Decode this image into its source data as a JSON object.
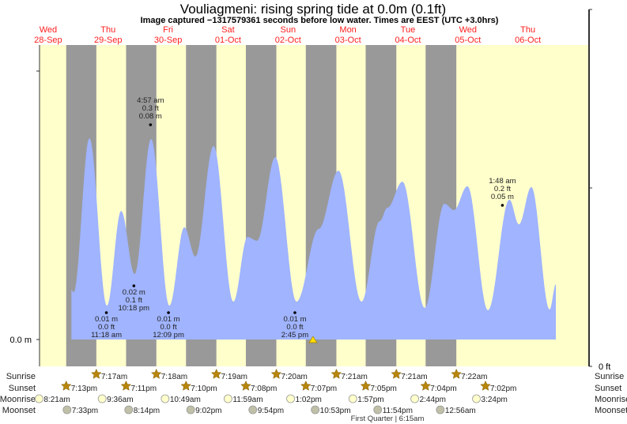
{
  "chart_data": {
    "type": "area",
    "title": "Vouliagmeni: rising  spring tide at 0.0m (0.1ft)",
    "subtitle": "Image captured −1317579361 seconds before low water. Times are EEST (UTC +3.0hrs)",
    "days": [
      {
        "name": "Wed",
        "date": "28-Sep"
      },
      {
        "name": "Thu",
        "date": "29-Sep"
      },
      {
        "name": "Fri",
        "date": "30-Sep"
      },
      {
        "name": "Sat",
        "date": "01-Oct"
      },
      {
        "name": "Sun",
        "date": "02-Oct"
      },
      {
        "name": "Mon",
        "date": "03-Oct"
      },
      {
        "name": "Tue",
        "date": "04-Oct"
      },
      {
        "name": "Wed",
        "date": "05-Oct"
      },
      {
        "name": "Thu",
        "date": "06-Oct"
      }
    ],
    "y_left_label": "0.0 m",
    "y_right_label": "0 ft",
    "x_unit": "hours from Wed 28-Sep 00:00",
    "tide_curve": {
      "hours": [
        21.3,
        22.2,
        28.5,
        35.5,
        41.2,
        46.6,
        53.2,
        60.5,
        66.5,
        70.9,
        78.2,
        86.1,
        91.8,
        95.6,
        102.9,
        111.4,
        120.3,
        128.2,
        137.4,
        144.7,
        147.8,
        153.8,
        162.7,
        170.6,
        174.4,
        179.8,
        188.0,
        196.6,
        200.4,
        205.4,
        212.7,
        215.2
      ],
      "height_m": [
        0.0185,
        0.0176,
        0.075,
        0.0126,
        0.0479,
        0.0244,
        0.0747,
        0.0126,
        0.0418,
        0.0309,
        0.0721,
        0.0141,
        0.0382,
        0.0368,
        0.0679,
        0.0141,
        0.0412,
        0.0629,
        0.0141,
        0.0441,
        0.0491,
        0.0588,
        0.0118,
        0.0506,
        0.0482,
        0.0571,
        0.0109,
        0.0521,
        0.0429,
        0.0568,
        0.0112,
        0.0206
      ]
    },
    "annotations": [
      {
        "hour": 52.95,
        "m": 0.08,
        "lines": [
          "4:57 am",
          "0.3 ft",
          "0.08 m"
        ],
        "pos": "above"
      },
      {
        "hour": 46.3,
        "m": 0.02,
        "lines": [
          "0.02 m",
          "0.1 ft",
          "10:18 pm"
        ],
        "pos": "below"
      },
      {
        "hour": 35.3,
        "m": 0.01,
        "lines": [
          "0.01 m",
          "0.0 ft",
          "11:18 am"
        ],
        "pos": "below"
      },
      {
        "hour": 60.15,
        "m": 0.01,
        "lines": [
          "0.01 m",
          "0.0 ft",
          "12:09 pm"
        ],
        "pos": "below"
      },
      {
        "hour": 110.75,
        "m": 0.01,
        "lines": [
          "0.01 m",
          "0.0 ft",
          "2:45 pm"
        ],
        "pos": "below"
      },
      {
        "hour": 193.8,
        "m": 0.05,
        "lines": [
          "1:48 am",
          "0.2 ft",
          "0.05 m"
        ],
        "pos": "above"
      }
    ],
    "nights": [
      [
        19.22,
        31.28
      ],
      [
        43.18,
        55.3
      ],
      [
        67.17,
        79.32
      ],
      [
        91.13,
        103.33
      ],
      [
        115.12,
        127.35
      ],
      [
        139.08,
        151.35
      ],
      [
        163.07,
        175.37
      ]
    ],
    "marker_hour": 118,
    "rows": {
      "sunrise": {
        "label": "Sunrise",
        "events": [
          {
            "hour": 31.28,
            "text": "7:17am"
          },
          {
            "hour": 55.3,
            "text": "7:18am"
          },
          {
            "hour": 79.32,
            "text": "7:19am"
          },
          {
            "hour": 103.33,
            "text": "7:20am"
          },
          {
            "hour": 127.35,
            "text": "7:21am"
          },
          {
            "hour": 151.35,
            "text": "7:21am"
          },
          {
            "hour": 175.37,
            "text": "7:22am"
          }
        ]
      },
      "sunset": {
        "label": "Sunset",
        "events": [
          {
            "hour": 19.22,
            "text": "7:13pm"
          },
          {
            "hour": 43.18,
            "text": "7:11pm"
          },
          {
            "hour": 67.17,
            "text": "7:10pm"
          },
          {
            "hour": 91.13,
            "text": "7:08pm"
          },
          {
            "hour": 115.12,
            "text": "7:07pm"
          },
          {
            "hour": 139.08,
            "text": "7:05pm"
          },
          {
            "hour": 163.07,
            "text": "7:04pm"
          },
          {
            "hour": 187.03,
            "text": "7:02pm"
          }
        ]
      },
      "moonrise": {
        "label": "Moonrise",
        "events": [
          {
            "hour": 8.35,
            "text": "8:21am"
          },
          {
            "hour": 33.6,
            "text": "9:36am"
          },
          {
            "hour": 58.82,
            "text": "10:49am"
          },
          {
            "hour": 83.98,
            "text": "11:59am"
          },
          {
            "hour": 109.03,
            "text": "1:02pm"
          },
          {
            "hour": 133.95,
            "text": "1:57pm"
          },
          {
            "hour": 158.73,
            "text": "2:44pm"
          },
          {
            "hour": 183.4,
            "text": "3:24pm"
          }
        ]
      },
      "moonset": {
        "label": "Moonset",
        "events": [
          {
            "hour": 19.55,
            "text": "7:33pm"
          },
          {
            "hour": 44.23,
            "text": "8:14pm"
          },
          {
            "hour": 69.03,
            "text": "9:02pm"
          },
          {
            "hour": 93.9,
            "text": "9:54pm"
          },
          {
            "hour": 118.88,
            "text": "10:53pm"
          },
          {
            "hour": 143.9,
            "text": "11:54pm"
          },
          {
            "hour": 168.93,
            "text": "12:56am"
          }
        ]
      }
    },
    "moon_phase": "First Quarter | 6:15am",
    "colors": {
      "day": "#ffffcc",
      "night": "#999999",
      "water": "#a0b4ff",
      "day_label": "#ff2020",
      "sun": "#b8860b",
      "moonrise": "#ffffcc",
      "moonset": "#c0c0a8"
    }
  }
}
